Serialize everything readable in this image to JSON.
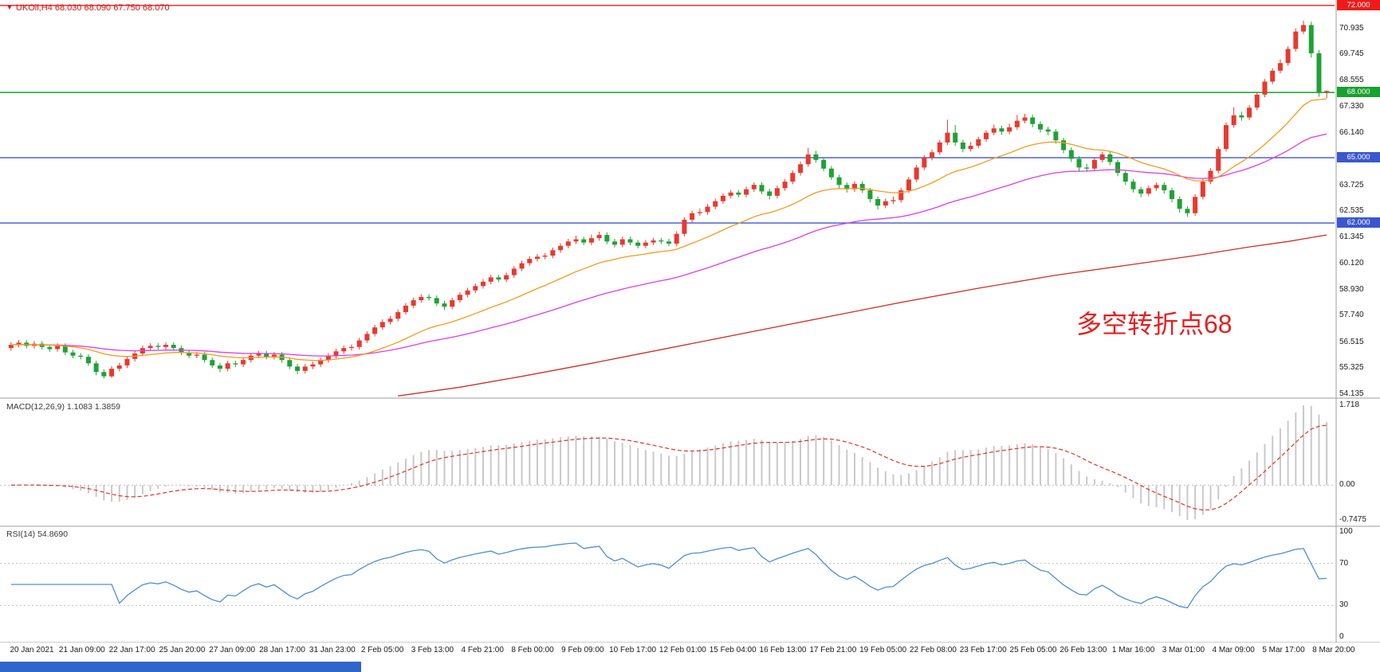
{
  "header": {
    "marker": "▼",
    "text": "UKOil,H4  68.030 68.090 67.750 68.070"
  },
  "annotation": {
    "text": "多空转折点68",
    "color": "#e32020"
  },
  "colors": {
    "bull": "#e8392f",
    "bear": "#1fa235",
    "panel_border": "#9e9e9e",
    "axis_text": "#1a1a1a"
  },
  "chart_data": [
    {
      "type": "candlestick",
      "symbol": "UKOil",
      "timeframe": "H4",
      "current_bar": {
        "open": 68.03,
        "high": 68.09,
        "low": 67.75,
        "close": 68.07
      },
      "y_range": {
        "min": 53.95,
        "max": 72.25
      },
      "y_ticks": [
        {
          "text": "70.935",
          "price": 70.935
        },
        {
          "text": "69.745",
          "price": 69.745
        },
        {
          "text": "68.555",
          "price": 68.555
        },
        {
          "text": "67.330",
          "price": 67.33
        },
        {
          "text": "66.140",
          "price": 66.14
        },
        {
          "text": "63.725",
          "price": 63.725
        },
        {
          "text": "62.535",
          "price": 62.535
        },
        {
          "text": "61.345",
          "price": 61.345
        },
        {
          "text": "60.120",
          "price": 60.12
        },
        {
          "text": "58.930",
          "price": 58.93
        },
        {
          "text": "57.740",
          "price": 57.74
        },
        {
          "text": "56.515",
          "price": 56.515
        },
        {
          "text": "55.325",
          "price": 55.325
        },
        {
          "text": "54.135",
          "price": 54.135
        }
      ],
      "price_lines": [
        {
          "label": "72.000",
          "price": 72.0,
          "color": "#ee1b1b"
        },
        {
          "label": "68.000",
          "price": 68.0,
          "color": "#17a12e"
        },
        {
          "label": "65.000",
          "price": 65.0,
          "color": "#3b57cd"
        },
        {
          "label": "62.000",
          "price": 62.0,
          "color": "#3b57cd"
        }
      ],
      "x_labels": [
        "20 Jan 2021",
        "21 Jan 09:00",
        "22 Jan 17:00",
        "25 Jan 20:00",
        "27 Jan 09:00",
        "28 Jan 17:00",
        "31 Jan 23:00",
        "2 Feb 05:00",
        "3 Feb 13:00",
        "4 Feb 21:00",
        "8 Feb 00:00",
        "9 Feb 09:00",
        "10 Feb 17:00",
        "12 Feb 01:00",
        "15 Feb 04:00",
        "16 Feb 13:00",
        "17 Feb 21:00",
        "19 Feb 05:00",
        "22 Feb 08:00",
        "23 Feb 17:00",
        "25 Feb 05:00",
        "26 Feb 13:00",
        "1 Mar 16:00",
        "3 Mar 01:00",
        "4 Mar 09:00",
        "5 Mar 17:00",
        "8 Mar 20:00"
      ],
      "moving_averages": {
        "fast": {
          "period": 20,
          "color": "#f29b1d"
        },
        "medium": {
          "period": 50,
          "color": "#e23ae2"
        },
        "slow": {
          "color": "#cf2e26",
          "points": [
            [
              50,
              54.05
            ],
            [
              58,
              54.45
            ],
            [
              66,
              54.95
            ],
            [
              75,
              55.55
            ],
            [
              85,
              56.25
            ],
            [
              95,
              56.95
            ],
            [
              105,
              57.65
            ],
            [
              115,
              58.35
            ],
            [
              125,
              59.0
            ],
            [
              135,
              59.6
            ],
            [
              145,
              60.1
            ],
            [
              153,
              60.5
            ],
            [
              160,
              60.9
            ],
            [
              165,
              61.15
            ],
            [
              170,
              61.45
            ]
          ]
        }
      },
      "ohlc": [
        [
          56.25,
          56.52,
          56.13,
          56.4
        ],
        [
          56.4,
          56.62,
          56.28,
          56.5
        ],
        [
          56.5,
          56.62,
          56.23,
          56.35
        ],
        [
          56.35,
          56.57,
          56.23,
          56.45
        ],
        [
          56.45,
          56.57,
          56.18,
          56.3
        ],
        [
          56.3,
          56.42,
          56.08,
          56.2
        ],
        [
          56.2,
          56.47,
          56.08,
          56.35
        ],
        [
          56.35,
          56.47,
          55.93,
          56.05
        ],
        [
          56.05,
          56.17,
          55.78,
          55.9
        ],
        [
          55.9,
          56.02,
          55.73,
          55.85
        ],
        [
          55.85,
          55.97,
          55.43,
          55.55
        ],
        [
          55.55,
          55.67,
          55.0,
          55.15
        ],
        [
          55.15,
          55.27,
          54.85,
          54.95
        ],
        [
          54.95,
          55.42,
          54.88,
          55.3
        ],
        [
          55.3,
          55.57,
          55.18,
          55.45
        ],
        [
          55.45,
          55.87,
          55.33,
          55.75
        ],
        [
          55.75,
          56.12,
          55.63,
          56.0
        ],
        [
          56.0,
          56.37,
          55.88,
          56.25
        ],
        [
          56.25,
          56.47,
          56.13,
          56.35
        ],
        [
          56.35,
          56.47,
          56.18,
          56.3
        ],
        [
          56.3,
          56.52,
          56.18,
          56.4
        ],
        [
          56.4,
          56.52,
          56.13,
          56.25
        ],
        [
          56.25,
          56.37,
          55.93,
          56.05
        ],
        [
          56.05,
          56.17,
          55.78,
          55.9
        ],
        [
          55.9,
          56.07,
          55.78,
          55.95
        ],
        [
          55.95,
          56.07,
          55.58,
          55.7
        ],
        [
          55.7,
          55.82,
          55.33,
          55.45
        ],
        [
          55.45,
          55.57,
          55.14,
          55.3
        ],
        [
          55.3,
          55.67,
          55.18,
          55.55
        ],
        [
          55.55,
          55.67,
          55.38,
          55.5
        ],
        [
          55.5,
          55.82,
          55.38,
          55.7
        ],
        [
          55.7,
          56.02,
          55.58,
          55.9
        ],
        [
          55.9,
          56.12,
          55.78,
          56.0
        ],
        [
          56.0,
          56.12,
          55.73,
          55.85
        ],
        [
          55.85,
          56.07,
          55.73,
          55.95
        ],
        [
          55.95,
          56.07,
          55.58,
          55.7
        ],
        [
          55.7,
          55.82,
          55.28,
          55.4
        ],
        [
          55.4,
          55.52,
          55.05,
          55.2
        ],
        [
          55.2,
          55.52,
          55.08,
          55.4
        ],
        [
          55.4,
          55.62,
          55.28,
          55.5
        ],
        [
          55.5,
          55.82,
          55.38,
          55.7
        ],
        [
          55.7,
          56.02,
          55.58,
          55.9
        ],
        [
          55.9,
          56.22,
          55.78,
          56.1
        ],
        [
          56.1,
          56.37,
          55.98,
          56.25
        ],
        [
          56.25,
          56.42,
          56.13,
          56.3
        ],
        [
          56.3,
          56.72,
          56.18,
          56.6
        ],
        [
          56.6,
          57.02,
          56.48,
          56.9
        ],
        [
          56.9,
          57.32,
          56.78,
          57.2
        ],
        [
          57.2,
          57.57,
          57.08,
          57.45
        ],
        [
          57.45,
          57.72,
          57.33,
          57.6
        ],
        [
          57.6,
          58.02,
          57.48,
          57.9
        ],
        [
          57.9,
          58.32,
          57.78,
          58.2
        ],
        [
          58.2,
          58.57,
          58.08,
          58.45
        ],
        [
          58.45,
          58.72,
          58.33,
          58.6
        ],
        [
          58.6,
          58.72,
          58.43,
          58.55
        ],
        [
          58.55,
          58.67,
          58.18,
          58.3
        ],
        [
          58.3,
          58.42,
          58.0,
          58.15
        ],
        [
          58.15,
          58.57,
          58.03,
          58.45
        ],
        [
          58.45,
          58.82,
          58.33,
          58.7
        ],
        [
          58.7,
          59.02,
          58.58,
          58.9
        ],
        [
          58.9,
          59.22,
          58.78,
          59.1
        ],
        [
          59.1,
          59.42,
          58.98,
          59.3
        ],
        [
          59.3,
          59.62,
          59.18,
          59.5
        ],
        [
          59.5,
          59.62,
          59.28,
          59.4
        ],
        [
          59.4,
          59.72,
          59.28,
          59.6
        ],
        [
          59.6,
          60.02,
          59.48,
          59.9
        ],
        [
          59.9,
          60.27,
          59.78,
          60.15
        ],
        [
          60.15,
          60.47,
          60.03,
          60.35
        ],
        [
          60.35,
          60.57,
          60.23,
          60.45
        ],
        [
          60.45,
          60.62,
          60.33,
          60.5
        ],
        [
          60.5,
          60.87,
          60.38,
          60.75
        ],
        [
          60.75,
          61.07,
          60.63,
          60.95
        ],
        [
          60.95,
          61.27,
          60.83,
          61.15
        ],
        [
          61.15,
          61.42,
          61.03,
          61.25
        ],
        [
          61.25,
          61.37,
          60.98,
          61.1
        ],
        [
          61.1,
          61.47,
          60.98,
          61.3
        ],
        [
          61.3,
          61.6,
          61.18,
          61.45
        ],
        [
          61.45,
          61.57,
          61.03,
          61.15
        ],
        [
          61.15,
          61.27,
          60.88,
          61.0
        ],
        [
          61.0,
          61.37,
          60.88,
          61.25
        ],
        [
          61.25,
          61.37,
          60.98,
          61.1
        ],
        [
          61.1,
          61.22,
          60.83,
          60.95
        ],
        [
          60.95,
          61.22,
          60.83,
          61.1
        ],
        [
          61.1,
          61.32,
          60.98,
          61.2
        ],
        [
          61.2,
          61.32,
          61.03,
          61.15
        ],
        [
          61.15,
          61.27,
          60.93,
          61.05
        ],
        [
          61.05,
          61.62,
          60.93,
          61.5
        ],
        [
          61.5,
          62.27,
          61.38,
          62.15
        ],
        [
          62.15,
          62.57,
          62.03,
          62.45
        ],
        [
          62.45,
          62.67,
          62.33,
          62.5
        ],
        [
          62.5,
          62.87,
          62.38,
          62.75
        ],
        [
          62.75,
          63.12,
          62.63,
          63.0
        ],
        [
          63.0,
          63.37,
          62.88,
          63.25
        ],
        [
          63.25,
          63.52,
          63.13,
          63.4
        ],
        [
          63.4,
          63.52,
          63.18,
          63.3
        ],
        [
          63.3,
          63.67,
          63.18,
          63.55
        ],
        [
          63.55,
          63.87,
          63.43,
          63.75
        ],
        [
          63.75,
          63.87,
          63.33,
          63.45
        ],
        [
          63.45,
          63.57,
          63.08,
          63.25
        ],
        [
          63.25,
          63.72,
          63.13,
          63.6
        ],
        [
          63.6,
          64.02,
          63.48,
          63.9
        ],
        [
          63.9,
          64.42,
          63.78,
          64.3
        ],
        [
          64.3,
          64.82,
          64.18,
          64.7
        ],
        [
          64.7,
          65.45,
          64.58,
          65.15
        ],
        [
          65.15,
          65.32,
          64.78,
          64.9
        ],
        [
          64.9,
          65.02,
          64.38,
          64.5
        ],
        [
          64.5,
          64.62,
          63.98,
          64.1
        ],
        [
          64.1,
          64.22,
          63.6,
          63.75
        ],
        [
          63.75,
          63.87,
          63.4,
          63.55
        ],
        [
          63.55,
          63.92,
          63.43,
          63.8
        ],
        [
          63.8,
          63.92,
          63.38,
          63.5
        ],
        [
          63.5,
          63.62,
          62.95,
          63.1
        ],
        [
          63.1,
          63.22,
          62.62,
          62.8
        ],
        [
          62.8,
          63.12,
          62.68,
          63.0
        ],
        [
          63.0,
          63.22,
          62.88,
          63.05
        ],
        [
          63.05,
          63.62,
          62.93,
          63.5
        ],
        [
          63.5,
          64.12,
          63.38,
          64.0
        ],
        [
          64.0,
          64.67,
          63.88,
          64.55
        ],
        [
          64.55,
          65.12,
          64.43,
          65.0
        ],
        [
          65.0,
          65.37,
          64.88,
          65.25
        ],
        [
          65.25,
          65.82,
          65.13,
          65.7
        ],
        [
          65.7,
          66.75,
          65.58,
          66.15
        ],
        [
          66.15,
          66.5,
          65.55,
          65.7
        ],
        [
          65.7,
          65.82,
          65.25,
          65.4
        ],
        [
          65.4,
          65.72,
          65.28,
          65.55
        ],
        [
          65.55,
          65.97,
          65.43,
          65.85
        ],
        [
          65.85,
          66.27,
          65.73,
          66.15
        ],
        [
          66.15,
          66.52,
          66.03,
          66.35
        ],
        [
          66.35,
          66.47,
          66.05,
          66.2
        ],
        [
          66.2,
          66.57,
          66.08,
          66.4
        ],
        [
          66.4,
          66.97,
          66.28,
          66.7
        ],
        [
          66.7,
          67.02,
          66.58,
          66.85
        ],
        [
          66.85,
          66.97,
          66.4,
          66.55
        ],
        [
          66.55,
          66.67,
          66.15,
          66.3
        ],
        [
          66.3,
          66.42,
          66.03,
          66.2
        ],
        [
          66.2,
          66.32,
          65.65,
          65.8
        ],
        [
          65.8,
          65.92,
          65.2,
          65.35
        ],
        [
          65.35,
          65.47,
          64.8,
          64.95
        ],
        [
          64.95,
          65.07,
          64.4,
          64.55
        ],
        [
          64.55,
          64.72,
          64.35,
          64.5
        ],
        [
          64.5,
          65.02,
          64.38,
          64.9
        ],
        [
          64.9,
          65.27,
          64.78,
          65.15
        ],
        [
          65.15,
          65.27,
          64.65,
          64.8
        ],
        [
          64.8,
          64.92,
          64.15,
          64.3
        ],
        [
          64.3,
          64.42,
          63.75,
          63.9
        ],
        [
          63.9,
          64.02,
          63.4,
          63.55
        ],
        [
          63.55,
          63.67,
          63.18,
          63.35
        ],
        [
          63.35,
          63.72,
          63.23,
          63.6
        ],
        [
          63.6,
          63.87,
          63.48,
          63.75
        ],
        [
          63.75,
          63.87,
          63.35,
          63.5
        ],
        [
          63.5,
          63.62,
          62.95,
          63.1
        ],
        [
          63.1,
          63.22,
          62.48,
          62.65
        ],
        [
          62.65,
          62.77,
          62.28,
          62.45
        ],
        [
          62.45,
          63.32,
          62.33,
          63.2
        ],
        [
          63.2,
          64.02,
          63.08,
          63.9
        ],
        [
          63.9,
          64.52,
          63.78,
          64.4
        ],
        [
          64.4,
          65.52,
          64.28,
          65.4
        ],
        [
          65.4,
          66.62,
          65.28,
          66.5
        ],
        [
          66.5,
          67.32,
          66.38,
          66.95
        ],
        [
          66.95,
          67.12,
          66.7,
          66.85
        ],
        [
          66.85,
          67.42,
          66.73,
          67.3
        ],
        [
          67.3,
          68.02,
          67.18,
          67.9
        ],
        [
          67.9,
          68.62,
          67.78,
          68.5
        ],
        [
          68.5,
          69.12,
          68.38,
          69.0
        ],
        [
          69.0,
          69.52,
          68.88,
          69.35
        ],
        [
          69.35,
          70.12,
          69.23,
          70.0
        ],
        [
          70.0,
          70.95,
          69.88,
          70.8
        ],
        [
          70.8,
          71.3,
          70.68,
          71.1
        ],
        [
          71.1,
          71.25,
          69.6,
          69.8
        ],
        [
          69.8,
          69.95,
          67.8,
          68.0
        ],
        [
          68.03,
          68.09,
          67.75,
          68.07
        ]
      ]
    },
    {
      "type": "macd",
      "display_label": "MACD(12,26,9) 1.1083 1.3859",
      "params": [
        12,
        26,
        9
      ],
      "main_value": 1.1083,
      "signal_value": 1.3859,
      "y_ticks": [
        {
          "text": "1.718",
          "value": 1.718
        },
        {
          "text": "0.00",
          "value": 0
        },
        {
          "text": "-0.7475",
          "value": -0.7475
        }
      ],
      "histogram_color": "#c9c9c9",
      "signal_color": "#e03131"
    },
    {
      "type": "rsi",
      "display_label": "RSI(14) 54.8690",
      "period": 14,
      "value": 54.869,
      "y_ticks": [
        {
          "text": "100",
          "value": 100
        },
        {
          "text": "70",
          "value": 70
        },
        {
          "text": "30",
          "value": 30
        },
        {
          "text": "0",
          "value": 0
        }
      ],
      "levels": [
        70,
        30
      ],
      "line_color": "#4c8fd0"
    }
  ]
}
